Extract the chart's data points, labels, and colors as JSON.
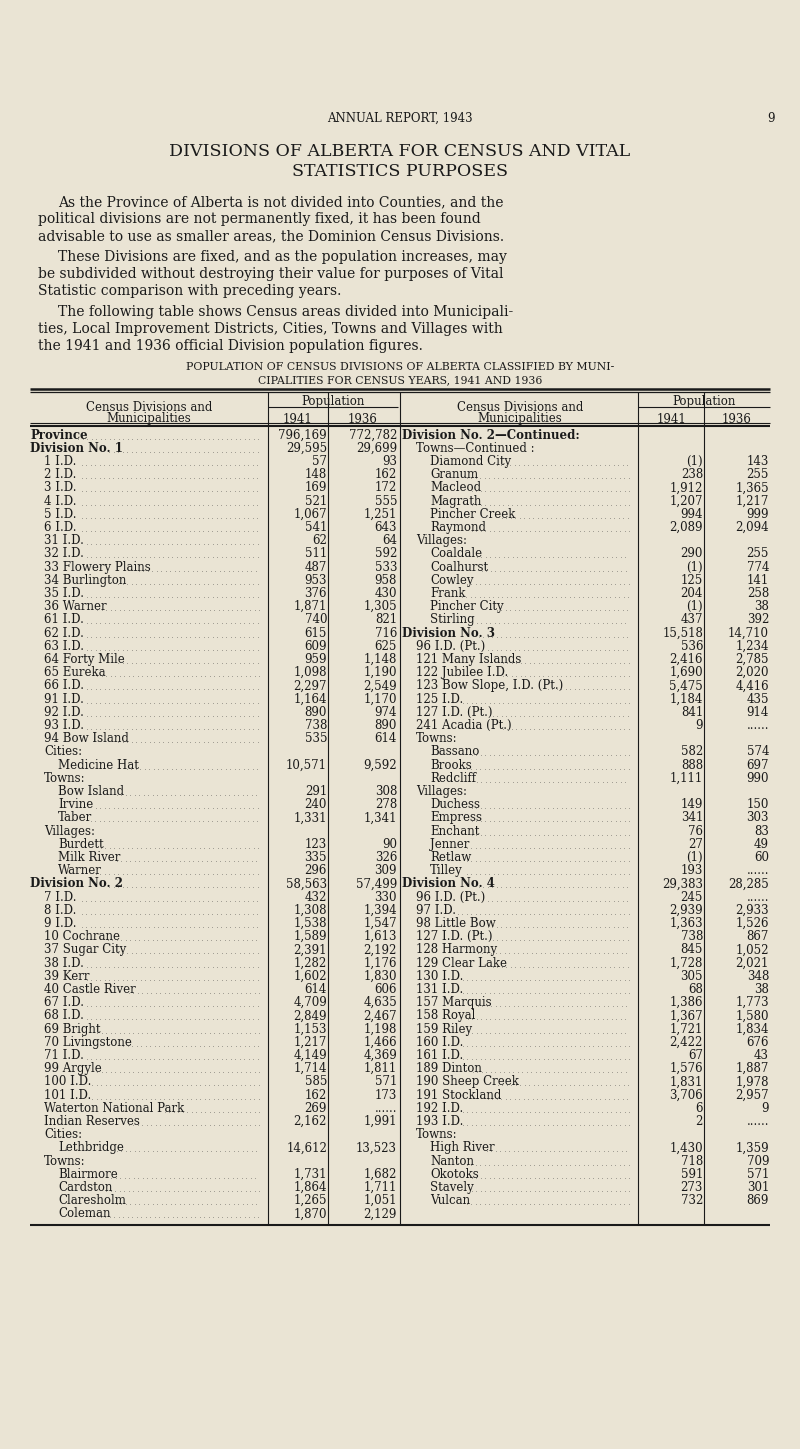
{
  "bg_color": "#EAE4D4",
  "text_color": "#1a1a1a",
  "page_header": "ANNUAL REPORT, 1943",
  "page_number": "9",
  "main_title_line1": "DIVISIONS OF ALBERTA FOR CENSUS AND VITAL",
  "main_title_line2": "STATISTICS PURPOSES",
  "table_title_line1": "POPULATION OF CENSUS DIVISIONS OF ALBERTA CLASSIFIED BY MUNI-",
  "table_title_line2": "CIPALITIES FOR CENSUS YEARS, 1941 AND 1936",
  "left_col": [
    [
      "Province",
      "796,169",
      "772,782",
      "bold",
      0
    ],
    [
      "Division No. 1",
      "29,595",
      "29,699",
      "bold",
      0
    ],
    [
      "1 I.D.",
      "57",
      "93",
      "normal",
      1
    ],
    [
      "2 I.D.",
      "148",
      "162",
      "normal",
      1
    ],
    [
      "3 I.D.",
      "169",
      "172",
      "normal",
      1
    ],
    [
      "4 I.D.",
      "521",
      "555",
      "normal",
      1
    ],
    [
      "5 I.D.",
      "1,067",
      "1,251",
      "normal",
      1
    ],
    [
      "6 I.D.",
      "541",
      "643",
      "normal",
      1
    ],
    [
      "31 I.D.",
      "62",
      "64",
      "normal",
      1
    ],
    [
      "32 I.D.",
      "511",
      "592",
      "normal",
      1
    ],
    [
      "33 Flowery Plains",
      "487",
      "533",
      "normal",
      1
    ],
    [
      "34 Burlington",
      "953",
      "958",
      "normal",
      1
    ],
    [
      "35 I.D.",
      "376",
      "430",
      "normal",
      1
    ],
    [
      "36 Warner",
      "1,871",
      "1,305",
      "normal",
      1
    ],
    [
      "61 I.D.",
      "740",
      "821",
      "normal",
      1
    ],
    [
      "62 I.D.",
      "615",
      "716",
      "normal",
      1
    ],
    [
      "63 I.D.",
      "609",
      "625",
      "normal",
      1
    ],
    [
      "64 Forty Mile",
      "959",
      "1,148",
      "normal",
      1
    ],
    [
      "65 Eureka",
      "1,098",
      "1,190",
      "normal",
      1
    ],
    [
      "66 I.D.",
      "2,297",
      "2,549",
      "normal",
      1
    ],
    [
      "91 I.D.",
      "1,164",
      "1,170",
      "normal",
      1
    ],
    [
      "92 I.D.",
      "890",
      "974",
      "normal",
      1
    ],
    [
      "93 I.D.",
      "738",
      "890",
      "normal",
      1
    ],
    [
      "94 Bow Island",
      "535",
      "614",
      "normal",
      1
    ],
    [
      "Cities:",
      "",
      "",
      "normal",
      1
    ],
    [
      "Medicine Hat",
      "10,571",
      "9,592",
      "normal",
      2
    ],
    [
      "Towns:",
      "",
      "",
      "normal",
      1
    ],
    [
      "Bow Island",
      "291",
      "308",
      "normal",
      2
    ],
    [
      "Irvine",
      "240",
      "278",
      "normal",
      2
    ],
    [
      "Taber",
      "1,331",
      "1,341",
      "normal",
      2
    ],
    [
      "Villages:",
      "",
      "",
      "normal",
      1
    ],
    [
      "Burdett",
      "123",
      "90",
      "normal",
      2
    ],
    [
      "Milk River",
      "335",
      "326",
      "normal",
      2
    ],
    [
      "Warner",
      "296",
      "309",
      "normal",
      2
    ],
    [
      "Division No. 2",
      "58,563",
      "57,499",
      "bold",
      0
    ],
    [
      "7 I.D.",
      "432",
      "330",
      "normal",
      1
    ],
    [
      "8 I.D.",
      "1,308",
      "1,394",
      "normal",
      1
    ],
    [
      "9 I.D.",
      "1,538",
      "1,547",
      "normal",
      1
    ],
    [
      "10 Cochrane",
      "1,589",
      "1,613",
      "normal",
      1
    ],
    [
      "37 Sugar City",
      "2,391",
      "2,192",
      "normal",
      1
    ],
    [
      "38 I.D.",
      "1,282",
      "1,176",
      "normal",
      1
    ],
    [
      "39 Kerr",
      "1,602",
      "1,830",
      "normal",
      1
    ],
    [
      "40 Castle River",
      "614",
      "606",
      "normal",
      1
    ],
    [
      "67 I.D.",
      "4,709",
      "4,635",
      "normal",
      1
    ],
    [
      "68 I.D.",
      "2,849",
      "2,467",
      "normal",
      1
    ],
    [
      "69 Bright",
      "1,153",
      "1,198",
      "normal",
      1
    ],
    [
      "70 Livingstone",
      "1,217",
      "1,466",
      "normal",
      1
    ],
    [
      "71 I.D.",
      "4,149",
      "4,369",
      "normal",
      1
    ],
    [
      "99 Argyle",
      "1,714",
      "1,811",
      "normal",
      1
    ],
    [
      "100 I.D.",
      "585",
      "571",
      "normal",
      1
    ],
    [
      "101 I.D.",
      "162",
      "173",
      "normal",
      1
    ],
    [
      "Waterton National Park",
      "269",
      "......",
      "normal",
      1
    ],
    [
      "Indian Reserves",
      "2,162",
      "1,991",
      "normal",
      1
    ],
    [
      "Cities:",
      "",
      "",
      "normal",
      1
    ],
    [
      "Lethbridge",
      "14,612",
      "13,523",
      "normal",
      2
    ],
    [
      "Towns:",
      "",
      "",
      "normal",
      1
    ],
    [
      "Blairmore",
      "1,731",
      "1,682",
      "normal",
      2
    ],
    [
      "Cardston",
      "1,864",
      "1,711",
      "normal",
      2
    ],
    [
      "Claresholm",
      "1,265",
      "1,051",
      "normal",
      2
    ],
    [
      "Coleman",
      "1,870",
      "2,129",
      "normal",
      2
    ]
  ],
  "right_col": [
    [
      "Division No. 2—Continued:",
      "",
      "",
      "bold",
      0
    ],
    [
      "Towns—Continued :",
      "",
      "",
      "normal",
      1
    ],
    [
      "Diamond City",
      "(1)",
      "143",
      "normal",
      2
    ],
    [
      "Granum",
      "238",
      "255",
      "normal",
      2
    ],
    [
      "Macleod",
      "1,912",
      "1,365",
      "normal",
      2
    ],
    [
      "Magrath",
      "1,207",
      "1,217",
      "normal",
      2
    ],
    [
      "Pincher Creek",
      "994",
      "999",
      "normal",
      2
    ],
    [
      "Raymond",
      "2,089",
      "2,094",
      "normal",
      2
    ],
    [
      "Villages:",
      "",
      "",
      "normal",
      1
    ],
    [
      "Coaldale",
      "290",
      "255",
      "normal",
      2
    ],
    [
      "Coalhurst",
      "(1)",
      "774",
      "normal",
      2
    ],
    [
      "Cowley",
      "125",
      "141",
      "normal",
      2
    ],
    [
      "Frank",
      "204",
      "258",
      "normal",
      2
    ],
    [
      "Pincher City",
      "(1)",
      "38",
      "normal",
      2
    ],
    [
      "Stirling",
      "437",
      "392",
      "normal",
      2
    ],
    [
      "Division No. 3",
      "15,518",
      "14,710",
      "bold",
      0
    ],
    [
      "96 I.D. (Pt.)",
      "536",
      "1,234",
      "normal",
      1
    ],
    [
      "121 Many Islands",
      "2,416",
      "2,785",
      "normal",
      1
    ],
    [
      "122 Jubilee I.D.",
      "1,690",
      "2,020",
      "normal",
      1
    ],
    [
      "123 Bow Slope, I.D. (Pt.)",
      "5,475",
      "4,416",
      "normal",
      1
    ],
    [
      "125 I.D.",
      "1,184",
      "435",
      "normal",
      1
    ],
    [
      "127 I.D. (Pt.)",
      "841",
      "914",
      "normal",
      1
    ],
    [
      "241 Acadia (Pt.)",
      "9",
      "......",
      "normal",
      1
    ],
    [
      "Towns:",
      "",
      "",
      "normal",
      1
    ],
    [
      "Bassano",
      "582",
      "574",
      "normal",
      2
    ],
    [
      "Brooks",
      "888",
      "697",
      "normal",
      2
    ],
    [
      "Redcliff",
      "1,111",
      "990",
      "normal",
      2
    ],
    [
      "Villages:",
      "",
      "",
      "normal",
      1
    ],
    [
      "Duchess",
      "149",
      "150",
      "normal",
      2
    ],
    [
      "Empress",
      "341",
      "303",
      "normal",
      2
    ],
    [
      "Enchant",
      "76",
      "83",
      "normal",
      2
    ],
    [
      "Jenner",
      "27",
      "49",
      "normal",
      2
    ],
    [
      "Retlaw",
      "(1)",
      "60",
      "normal",
      2
    ],
    [
      "Tilley",
      "193",
      "......",
      "normal",
      2
    ],
    [
      "Division No. 4",
      "29,383",
      "28,285",
      "bold",
      0
    ],
    [
      "96 I.D. (Pt.)",
      "245",
      "......",
      "normal",
      1
    ],
    [
      "97 I.D.",
      "2,939",
      "2,933",
      "normal",
      1
    ],
    [
      "98 Little Bow",
      "1,363",
      "1,526",
      "normal",
      1
    ],
    [
      "127 I.D. (Pt.)",
      "738",
      "867",
      "normal",
      1
    ],
    [
      "128 Harmony",
      "845",
      "1,052",
      "normal",
      1
    ],
    [
      "129 Clear Lake",
      "1,728",
      "2,021",
      "normal",
      1
    ],
    [
      "130 I.D.",
      "305",
      "348",
      "normal",
      1
    ],
    [
      "131 I.D.",
      "68",
      "38",
      "normal",
      1
    ],
    [
      "157 Marquis",
      "1,386",
      "1,773",
      "normal",
      1
    ],
    [
      "158 Royal",
      "1,367",
      "1,580",
      "normal",
      1
    ],
    [
      "159 Riley",
      "1,721",
      "1,834",
      "normal",
      1
    ],
    [
      "160 I.D.",
      "2,422",
      "676",
      "normal",
      1
    ],
    [
      "161 I.D.",
      "67",
      "43",
      "normal",
      1
    ],
    [
      "189 Dinton",
      "1,576",
      "1,887",
      "normal",
      1
    ],
    [
      "190 Sheep Creek",
      "1,831",
      "1,978",
      "normal",
      1
    ],
    [
      "191 Stockland",
      "3,706",
      "2,957",
      "normal",
      1
    ],
    [
      "192 I.D.",
      "6",
      "9",
      "normal",
      1
    ],
    [
      "193 I.D.",
      "2",
      "......",
      "normal",
      1
    ],
    [
      "Towns:",
      "",
      "",
      "normal",
      1
    ],
    [
      "High River",
      "1,430",
      "1,359",
      "normal",
      2
    ],
    [
      "Nanton",
      "718",
      "709",
      "normal",
      2
    ],
    [
      "Okotoks",
      "591",
      "571",
      "normal",
      2
    ],
    [
      "Stavely",
      "273",
      "301",
      "normal",
      2
    ],
    [
      "Vulcan",
      "732",
      "869",
      "normal",
      2
    ]
  ]
}
